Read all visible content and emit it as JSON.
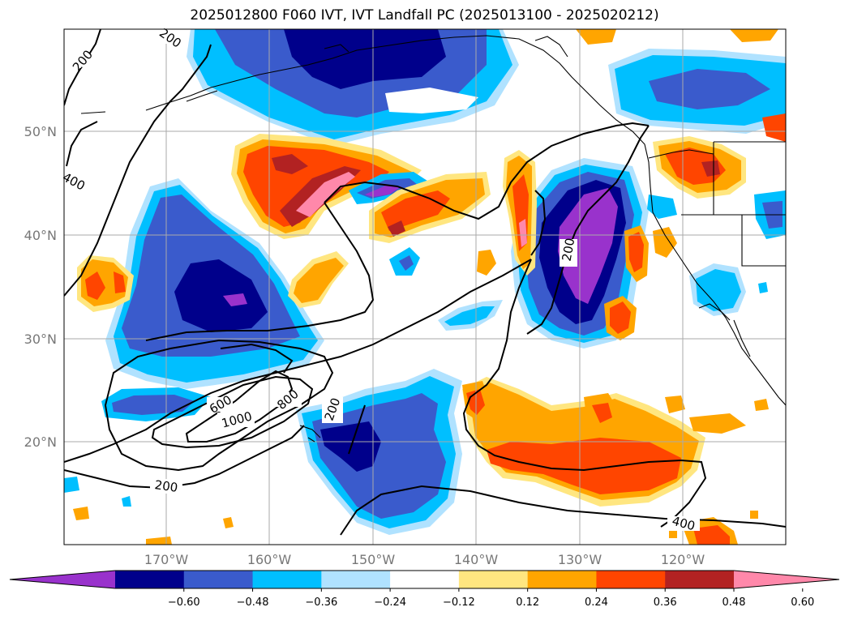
{
  "title": "2025012800 F060 IVT, IVT Landfall PC (2025013100 - 2025020212)",
  "lat_labels": [
    "50°N",
    "40°N",
    "30°N",
    "20°N"
  ],
  "lon_labels": [
    "170°W",
    "160°W",
    "150°W",
    "140°W",
    "130°W",
    "120°W"
  ],
  "contour_labels": [
    "200",
    "200",
    "400",
    "600",
    "800",
    "1000",
    "200",
    "200",
    "200",
    "400"
  ],
  "colorbar": {
    "ticks": [
      "−0.60",
      "−0.48",
      "−0.36",
      "−0.24",
      "−0.12",
      "0.12",
      "0.24",
      "0.36",
      "0.48",
      "0.60"
    ],
    "colors": [
      "#9932cc",
      "#00008b",
      "#3a5bcc",
      "#00bfff",
      "#b0e2ff",
      "#ffffff",
      "#ffe680",
      "#ffa500",
      "#ff4500",
      "#b22222",
      "#ff88aa"
    ]
  }
}
